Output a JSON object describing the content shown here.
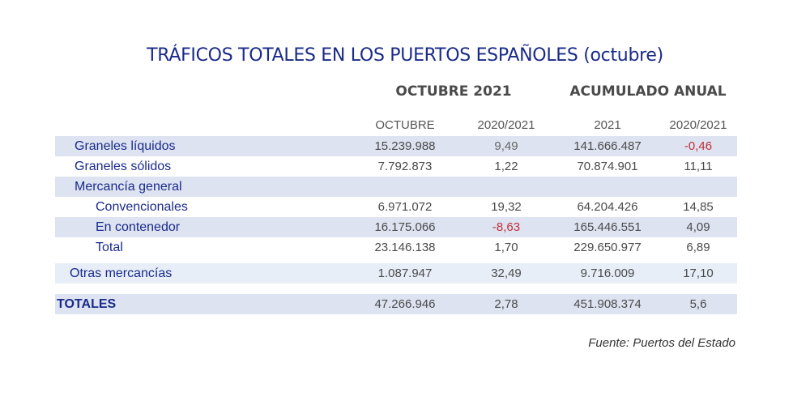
{
  "title": "TRÁFICOS TOTALES EN LOS PUERTOS ESPAÑOLES (octubre)",
  "group_headers": [
    "OCTUBRE 2021",
    "ACUMULADO ANUAL"
  ],
  "column_headers": [
    "OCTUBRE",
    "2020/2021",
    "2021",
    "2020/2021"
  ],
  "rows": [
    {
      "label": "Graneles líquidos",
      "values": [
        "15.239.988",
        "9,49",
        "141.666.487",
        "-0,46"
      ]
    },
    {
      "label": "Graneles sólidos",
      "values": [
        "7.792.873",
        "1,22",
        "70.874.901",
        "11,11"
      ]
    },
    {
      "label": "Mercancía general",
      "values": [
        "",
        "",
        "",
        ""
      ]
    },
    {
      "label": "Convencionales",
      "values": [
        "6.971.072",
        "19,32",
        "64.204.426",
        "14,85"
      ]
    },
    {
      "label": "En contenedor",
      "values": [
        "16.175.066",
        "-8,63",
        "165.446.551",
        "4,09"
      ]
    },
    {
      "label": "Total",
      "values": [
        "23.146.138",
        "1,70",
        "229.650.977",
        "6,89"
      ]
    },
    {
      "label": "Otras mercancías",
      "values": [
        "1.087.947",
        "32,49",
        "9.716.009",
        "17,10"
      ]
    },
    {
      "label": "TOTALES",
      "values": [
        "47.266.946",
        "2,78",
        "451.908.374",
        "5,6"
      ]
    }
  ],
  "source": "Fuente: Puertos del Estado",
  "colors": {
    "title": "#1a2a8a",
    "negative": "#c0303a",
    "shade": "#dde3f1"
  }
}
